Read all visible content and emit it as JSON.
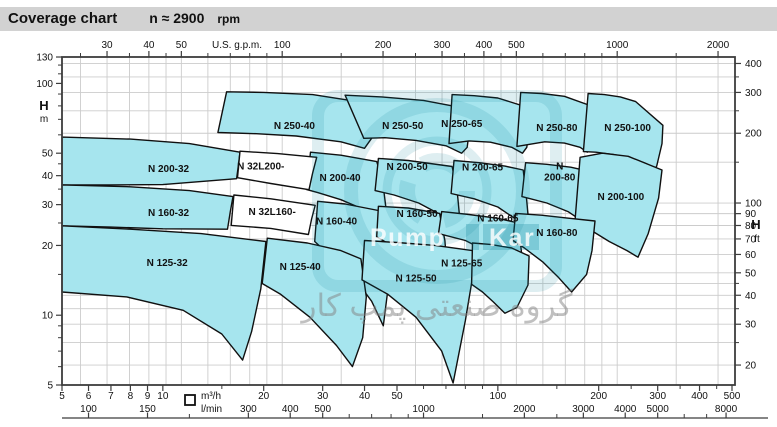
{
  "title_bar": {
    "title": "Coverage chart",
    "speed": "n ≈ 2900",
    "unit": "rpm"
  },
  "colors": {
    "region_fill": "#a6e5ee",
    "region_alt_fill": "#ffffff",
    "outline": "#101010",
    "grid": "#cccccc",
    "axis": "#3c3c3c",
    "titlebar_bg": "#d2d2d2",
    "watermark_teal": "rgba(0,125,148,0.13)",
    "watermark_bar": "rgba(0,125,148,0.25)",
    "watermark_text": "rgba(255,255,255,0.8)",
    "watermark_gray": "rgba(130,130,130,0.5)"
  },
  "chart_data": {
    "type": "coverage-map",
    "title": "Coverage chart",
    "speed_note": "n ≈ 2900 rpm",
    "x_axis_gpm": {
      "label": "U.S. g.p.m.",
      "labeled_ticks": [
        30,
        40,
        50,
        100,
        200,
        300,
        400,
        500,
        1000,
        2000
      ],
      "minor_ticks": [
        25,
        35,
        45,
        60,
        70,
        80,
        90,
        150,
        250,
        350,
        450,
        600,
        700,
        800,
        900,
        1500
      ]
    },
    "x_axis_m3h": {
      "label": "m³/h",
      "min": 5,
      "max": 510,
      "labeled_ticks": [
        5,
        6,
        7,
        8,
        9,
        10,
        20,
        30,
        40,
        50,
        100,
        200,
        300,
        400,
        500
      ],
      "minor_ticks": [
        15,
        60,
        70,
        80,
        90,
        150,
        250,
        350,
        450
      ]
    },
    "x_axis_lmin": {
      "label": "l/min",
      "labeled_ticks": [
        100,
        150,
        300,
        400,
        500,
        1000,
        2000,
        3000,
        4000,
        5000,
        8000
      ],
      "minor_ticks": [
        200,
        600,
        700,
        800,
        900,
        1500,
        2500,
        6000,
        7000
      ]
    },
    "y_axis_m": {
      "label": "H",
      "unit": "m",
      "min": 5,
      "max": 130,
      "labeled_ticks": [
        130,
        100,
        50,
        40,
        30,
        20,
        10,
        5
      ],
      "minor_ticks": [
        120,
        110,
        90,
        80,
        70,
        60,
        45,
        35,
        25,
        15,
        9,
        8,
        7,
        6
      ]
    },
    "y_axis_ft": {
      "label": "H",
      "unit": "ft",
      "labeled_ticks": [
        400,
        300,
        200,
        100,
        90,
        80,
        70,
        60,
        50,
        40,
        30,
        20
      ],
      "minor_ticks": [
        350,
        250,
        150,
        45,
        35,
        25
      ]
    },
    "regions": [
      {
        "name": "N 250-40",
        "fill": "cyan",
        "label_q": 24.7,
        "label_h": 66,
        "outline": [
          [
            15.5,
            92
          ],
          [
            20,
            91.5
          ],
          [
            28,
            89.5
          ],
          [
            43.5,
            81
          ],
          [
            43,
            70
          ],
          [
            42,
            58
          ],
          [
            40,
            52.5
          ],
          [
            34,
            56
          ],
          [
            25,
            59.3
          ],
          [
            19,
            60.7
          ],
          [
            14.6,
            61.4
          ]
        ]
      },
      {
        "name": "N 250-50",
        "fill": "cyan",
        "label_q": 52,
        "label_h": 66,
        "outline": [
          [
            35,
            89
          ],
          [
            45,
            87.5
          ],
          [
            60,
            84.5
          ],
          [
            82,
            77.5
          ],
          [
            82.5,
            66
          ],
          [
            81,
            53
          ],
          [
            78,
            50
          ],
          [
            70,
            53.8
          ],
          [
            57,
            56.8
          ],
          [
            46,
            58.3
          ],
          [
            39.8,
            58
          ]
        ]
      },
      {
        "name": "N 250-65",
        "fill": "cyan",
        "label_q": 78,
        "label_h": 67,
        "outline": [
          [
            73,
            89.5
          ],
          [
            85,
            88.5
          ],
          [
            100,
            86.5
          ],
          [
            124,
            78.5
          ],
          [
            124.5,
            66
          ],
          [
            122,
            53
          ],
          [
            118.5,
            50
          ],
          [
            110,
            53
          ],
          [
            95,
            55.8
          ],
          [
            82,
            56.5
          ],
          [
            71.5,
            55
          ]
        ]
      },
      {
        "name": "N 250-80",
        "fill": "cyan",
        "label_q": 150,
        "label_h": 64.7,
        "outline": [
          [
            117,
            91.5
          ],
          [
            135,
            90.5
          ],
          [
            158,
            88
          ],
          [
            192,
            79.5
          ],
          [
            192.5,
            67
          ],
          [
            189,
            53.5
          ],
          [
            185,
            50.5
          ],
          [
            176,
            53
          ],
          [
            158,
            55.3
          ],
          [
            138,
            56
          ],
          [
            114,
            53.5
          ]
        ]
      },
      {
        "name": "N 250-100",
        "fill": "cyan",
        "label_q": 244,
        "label_h": 64.7,
        "outline": [
          [
            186,
            90.5
          ],
          [
            208,
            89.5
          ],
          [
            232,
            87.5
          ],
          [
            258,
            83.5
          ],
          [
            311,
            66
          ],
          [
            309,
            55
          ],
          [
            298,
            44
          ],
          [
            293,
            42
          ],
          [
            278,
            45
          ],
          [
            252,
            47.5
          ],
          [
            222,
            49.3
          ],
          [
            196,
            50.5
          ],
          [
            180,
            50.8
          ]
        ]
      },
      {
        "name": "N 200-32",
        "fill": "cyan",
        "label_q": 10.4,
        "label_h": 42.9,
        "outline": [
          [
            5,
            58.7
          ],
          [
            8,
            57.5
          ],
          [
            12,
            55
          ],
          [
            17,
            50.5
          ],
          [
            16.8,
            44
          ],
          [
            16.6,
            38.8
          ],
          [
            10,
            36.6
          ],
          [
            7,
            36.5
          ],
          [
            5,
            36.5
          ]
        ]
      },
      {
        "name": "N 200-40",
        "fill": "cyan",
        "label_q": 33.8,
        "label_h": 39.3,
        "outline": [
          [
            27.6,
            50.5
          ],
          [
            34,
            49
          ],
          [
            43.5,
            46
          ],
          [
            45.3,
            38
          ],
          [
            46.5,
            28
          ],
          [
            44.5,
            25
          ],
          [
            40,
            28.5
          ],
          [
            34,
            31.5
          ],
          [
            29,
            33.8
          ],
          [
            26.8,
            34.9
          ]
        ]
      },
      {
        "name": "N 200-50",
        "fill": "cyan",
        "label_q": 53.6,
        "label_h": 43.8,
        "outline": [
          [
            44,
            47.5
          ],
          [
            54,
            46.5
          ],
          [
            73,
            43.8
          ],
          [
            75.5,
            35
          ],
          [
            77,
            26
          ],
          [
            74.5,
            23.5
          ],
          [
            68,
            27
          ],
          [
            58,
            30.5
          ],
          [
            49,
            33
          ],
          [
            43,
            34.5
          ]
        ]
      },
      {
        "name": "N 200-65",
        "fill": "cyan",
        "label_q": 90,
        "label_h": 43.6,
        "outline": [
          [
            74,
            46.5
          ],
          [
            88,
            45.5
          ],
          [
            105,
            44
          ],
          [
            119,
            42.3
          ],
          [
            121.5,
            33
          ],
          [
            123.5,
            25.5
          ],
          [
            121,
            23
          ],
          [
            113,
            26
          ],
          [
            100,
            29.3
          ],
          [
            85,
            31.8
          ],
          [
            72.5,
            33.5
          ]
        ]
      },
      {
        "name": "N 200-80",
        "fill": "cyan",
        "label_q": 153,
        "label_h": 42,
        "two_line": [
          "N",
          "200-80"
        ],
        "outline": [
          [
            121,
            45.5
          ],
          [
            140,
            44.8
          ],
          [
            165,
            43.5
          ],
          [
            194,
            41.3
          ],
          [
            195.5,
            32
          ],
          [
            196,
            24.5
          ],
          [
            192,
            22.5
          ],
          [
            182,
            25
          ],
          [
            162,
            28
          ],
          [
            140,
            30.5
          ],
          [
            118,
            32.5
          ]
        ]
      },
      {
        "name": "N 200-100",
        "fill": "cyan",
        "label_q": 233,
        "label_h": 32.6,
        "outline": [
          [
            176,
            48
          ],
          [
            205,
            50
          ],
          [
            245,
            48.5
          ],
          [
            309,
            42.3
          ],
          [
            302,
            32
          ],
          [
            281,
            22.5
          ],
          [
            262,
            17.8
          ],
          [
            243,
            19
          ],
          [
            215,
            20.8
          ],
          [
            192,
            23
          ],
          [
            170,
            25.5
          ]
        ]
      },
      {
        "name": "N 160-32",
        "fill": "cyan",
        "label_q": 10.4,
        "label_h": 27.7,
        "outline": [
          [
            5,
            36.5
          ],
          [
            8,
            35.8
          ],
          [
            12,
            34.5
          ],
          [
            16.2,
            32.5
          ],
          [
            15.9,
            28
          ],
          [
            15.6,
            23.5
          ],
          [
            10,
            23.6
          ],
          [
            7,
            24
          ],
          [
            5,
            24.3
          ]
        ]
      },
      {
        "name": "N 160-40",
        "fill": "cyan",
        "label_q": 33,
        "label_h": 25.5,
        "outline": [
          [
            29,
            31
          ],
          [
            35,
            30.2
          ],
          [
            44,
            28.3
          ],
          [
            45.8,
            22
          ],
          [
            47,
            13
          ],
          [
            45.5,
            9
          ],
          [
            42,
            11.5
          ],
          [
            36,
            15.5
          ],
          [
            31,
            18.5
          ],
          [
            28.4,
            20.8
          ]
        ]
      },
      {
        "name": "N 160-50",
        "fill": "cyan",
        "label_q": 57.4,
        "label_h": 27.5,
        "outline": [
          [
            44,
            29.5
          ],
          [
            54,
            29
          ],
          [
            67,
            27.5
          ],
          [
            69.5,
            21
          ],
          [
            71,
            14
          ],
          [
            69,
            11.5
          ],
          [
            64,
            14
          ],
          [
            56,
            17.5
          ],
          [
            48,
            20
          ],
          [
            43.5,
            21.8
          ]
        ]
      },
      {
        "name": "N 160-65",
        "fill": "cyan",
        "label_q": 100,
        "label_h": 26.3,
        "outline": [
          [
            68,
            28
          ],
          [
            82,
            27.2
          ],
          [
            100,
            26.2
          ],
          [
            115,
            25
          ],
          [
            118,
            18
          ],
          [
            119,
            13.8
          ],
          [
            116.5,
            12.5
          ],
          [
            110,
            14.8
          ],
          [
            95,
            18.5
          ],
          [
            80,
            21
          ],
          [
            66.5,
            22.5
          ]
        ]
      },
      {
        "name": "N 160-80",
        "fill": "cyan",
        "label_q": 150,
        "label_h": 22.7,
        "outline": [
          [
            113,
            27.5
          ],
          [
            135,
            27
          ],
          [
            160,
            26.3
          ],
          [
            195,
            25.5
          ],
          [
            191,
            19
          ],
          [
            184,
            15
          ],
          [
            166,
            12.6
          ],
          [
            152,
            14.5
          ],
          [
            136,
            17
          ],
          [
            120,
            19.5
          ],
          [
            111,
            21
          ]
        ]
      },
      {
        "name": "N 125-32",
        "fill": "cyan",
        "label_q": 10.3,
        "label_h": 16.9,
        "outline": [
          [
            5,
            24.3
          ],
          [
            8,
            23.5
          ],
          [
            13,
            22.5
          ],
          [
            20.3,
            20.8
          ],
          [
            19.6,
            13
          ],
          [
            18.4,
            8.5
          ],
          [
            17.3,
            6.4
          ],
          [
            15,
            8.3
          ],
          [
            11.5,
            10.5
          ],
          [
            7.8,
            12
          ],
          [
            5,
            12.6
          ]
        ]
      },
      {
        "name": "N 125-40",
        "fill": "cyan",
        "label_q": 25.7,
        "label_h": 16.2,
        "outline": [
          [
            20.5,
            21.5
          ],
          [
            27,
            20.5
          ],
          [
            34,
            19
          ],
          [
            39,
            17.5
          ],
          [
            40.5,
            12
          ],
          [
            39.5,
            8
          ],
          [
            36.8,
            6
          ],
          [
            33,
            7.4
          ],
          [
            27.5,
            9.8
          ],
          [
            22.5,
            12.3
          ],
          [
            19.8,
            13.7
          ]
        ]
      },
      {
        "name": "N 125-50",
        "fill": "cyan",
        "label_q": 57,
        "label_h": 14.5,
        "outline": [
          [
            40,
            21
          ],
          [
            50,
            20.6
          ],
          [
            65,
            20
          ],
          [
            84,
            19
          ],
          [
            84,
            14.5
          ],
          [
            80,
            9.5
          ],
          [
            73.5,
            5.1
          ],
          [
            68,
            7
          ],
          [
            57,
            9.8
          ],
          [
            47,
            12.3
          ],
          [
            39.3,
            14.2
          ]
        ]
      },
      {
        "name": "N 125-65",
        "fill": "cyan",
        "label_q": 78,
        "label_h": 16.8,
        "outline": [
          [
            84,
            20.5
          ],
          [
            95,
            20.2
          ],
          [
            110,
            19.5
          ],
          [
            124,
            18
          ],
          [
            123,
            13.5
          ],
          [
            114,
            10.8
          ],
          [
            105,
            10.2
          ],
          [
            97,
            11.4
          ],
          [
            90,
            12.6
          ],
          [
            83.5,
            13.6
          ]
        ]
      },
      {
        "name": "N 32L200-",
        "fill": "white",
        "label_q": 19.6,
        "label_h": 44,
        "outline": [
          [
            17,
            51
          ],
          [
            22,
            49.8
          ],
          [
            28.8,
            48
          ],
          [
            28,
            41
          ],
          [
            27.3,
            34.8
          ],
          [
            21,
            37
          ],
          [
            16.7,
            39.2
          ]
        ]
      },
      {
        "name": "N 32L160-",
        "fill": "white",
        "label_q": 21.2,
        "label_h": 28,
        "outline": [
          [
            16.3,
            33
          ],
          [
            21,
            31.8
          ],
          [
            28.5,
            29.8
          ],
          [
            27.8,
            26
          ],
          [
            27.2,
            22.3
          ],
          [
            21,
            23.7
          ],
          [
            16,
            24.4
          ]
        ]
      }
    ],
    "watermark": {
      "line1_left": "Pump",
      "line1_right": "Kar",
      "line2": "گروه صنعتی پمپ کار"
    }
  }
}
